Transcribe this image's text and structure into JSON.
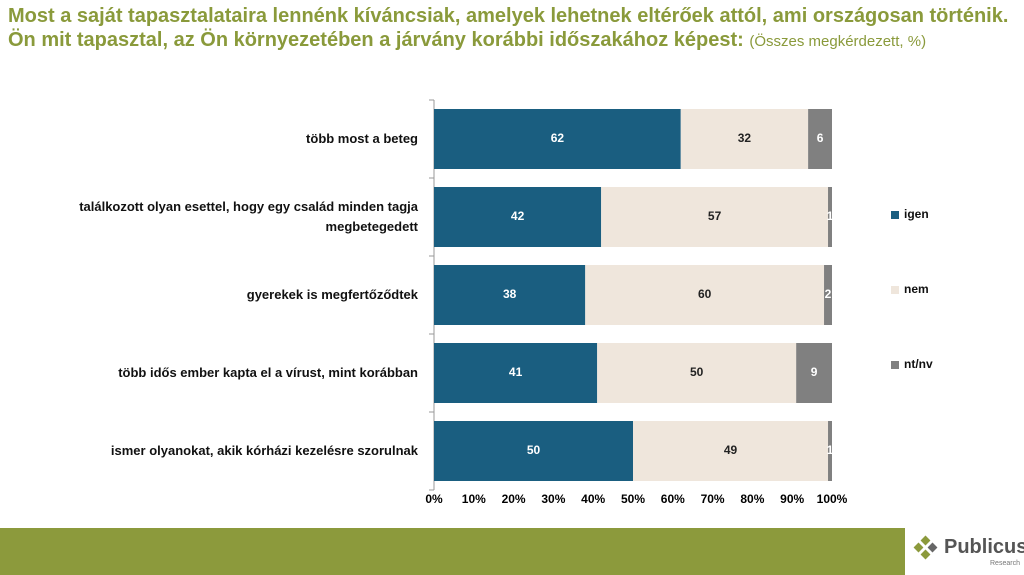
{
  "chart_data": {
    "type": "stacked-barh",
    "title": "Most a saját tapasztalataira lennénk kíváncsiak, amelyek lehetnek eltérőek attól, ami országosan történik. Ön mit tapasztal, az Ön környezetében a járvány korábbi időszakához képest:",
    "subtitle": "(Összes megkérdezett, %)",
    "categories": [
      "több most a beteg",
      "találkozott olyan esettel, hogy egy család minden tagja megbetegedett",
      "gyerekek is megfertőződtek",
      "több idős ember kapta el a vírust, mint korábban",
      "ismer olyanokat, akik kórházi kezelésre szorulnak"
    ],
    "series": [
      {
        "name": "igen",
        "color": "#1a5e80",
        "label_color": "#ffffff",
        "values": [
          62,
          42,
          38,
          41,
          50
        ]
      },
      {
        "name": "nem",
        "color": "#efe6dc",
        "label_color": "#222222",
        "values": [
          32,
          57,
          60,
          50,
          49
        ]
      },
      {
        "name": "nt/nv",
        "color": "#808080",
        "label_color": "#ffffff",
        "values": [
          6,
          1,
          2,
          9,
          1
        ]
      }
    ],
    "xlim": [
      0,
      100
    ],
    "xticks": [
      {
        "value": 0,
        "label": "0%"
      },
      {
        "value": 10,
        "label": "10%"
      },
      {
        "value": 20,
        "label": "20%"
      },
      {
        "value": 30,
        "label": "30%"
      },
      {
        "value": 40,
        "label": "40%"
      },
      {
        "value": 50,
        "label": "50%"
      },
      {
        "value": 60,
        "label": "60%"
      },
      {
        "value": 70,
        "label": "70%"
      },
      {
        "value": 80,
        "label": "80%"
      },
      {
        "value": 90,
        "label": "90%"
      },
      {
        "value": 100,
        "label": "100%"
      }
    ],
    "legend": "right"
  },
  "footer": {
    "brand": "Publicus",
    "tagline": "Research"
  }
}
